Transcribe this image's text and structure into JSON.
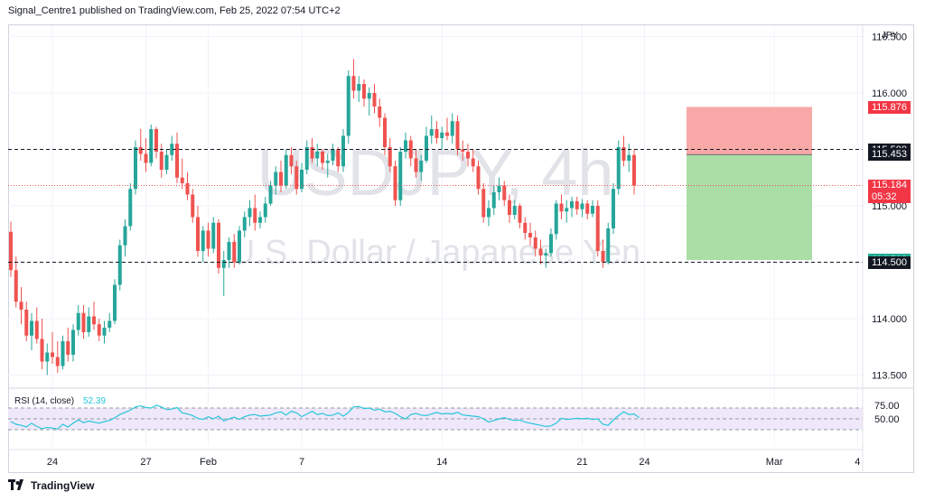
{
  "header": {
    "publisher_line": "Signal_Centre1 published on TradingView.com, Feb 25, 2022 07:54 UTC+2"
  },
  "footer": {
    "brand": "TradingView"
  },
  "colors": {
    "up": "#26a69a",
    "down": "#ef5350",
    "rsi_line": "#26c6da",
    "rsi_band": "#efe8fb",
    "risk_zone": "#f7a3a2",
    "reward_zone": "#a5dca1",
    "grid": "#f0f3fa",
    "dashed": "#131722"
  },
  "chart_data": {
    "type": "candlestick",
    "symbol_watermark": "USDJPY, 4h",
    "description_watermark": "U.S. Dollar / Japanese Yen",
    "currency": "JPY",
    "y_ticks": [
      "116.500",
      "116.000",
      "115.500",
      "115.000",
      "114.500",
      "114.000",
      "113.500"
    ],
    "ylim": [
      113.4,
      116.6
    ],
    "x_tick_labels": [
      "24",
      "27",
      "Feb",
      "7",
      "14",
      "21",
      "24",
      "Mar",
      "4"
    ],
    "candles": [
      [
        114.77,
        114.86,
        114.37,
        114.43
      ],
      [
        114.43,
        114.55,
        114.1,
        114.15
      ],
      [
        114.15,
        114.28,
        113.95,
        114.08
      ],
      [
        114.08,
        114.15,
        113.8,
        113.85
      ],
      [
        113.85,
        114.05,
        113.72,
        113.98
      ],
      [
        113.98,
        114.1,
        113.78,
        113.82
      ],
      [
        113.82,
        114.0,
        113.55,
        113.62
      ],
      [
        113.62,
        113.78,
        113.5,
        113.7
      ],
      [
        113.7,
        113.88,
        113.6,
        113.66
      ],
      [
        113.66,
        113.8,
        113.52,
        113.58
      ],
      [
        113.58,
        113.85,
        113.55,
        113.8
      ],
      [
        113.8,
        113.92,
        113.62,
        113.68
      ],
      [
        113.68,
        113.95,
        113.62,
        113.9
      ],
      [
        113.9,
        114.12,
        113.85,
        114.05
      ],
      [
        114.05,
        114.12,
        113.82,
        113.88
      ],
      [
        113.88,
        114.1,
        113.84,
        114.02
      ],
      [
        114.02,
        114.15,
        113.9,
        113.95
      ],
      [
        113.95,
        114.0,
        113.8,
        113.85
      ],
      [
        113.85,
        113.98,
        113.78,
        113.92
      ],
      [
        113.92,
        114.05,
        113.88,
        113.98
      ],
      [
        113.98,
        114.35,
        113.95,
        114.3
      ],
      [
        114.3,
        114.7,
        114.25,
        114.65
      ],
      [
        114.65,
        114.88,
        114.55,
        114.82
      ],
      [
        114.82,
        115.2,
        114.78,
        115.15
      ],
      [
        115.15,
        115.58,
        115.1,
        115.52
      ],
      [
        115.52,
        115.68,
        115.4,
        115.46
      ],
      [
        115.46,
        115.6,
        115.3,
        115.38
      ],
      [
        115.38,
        115.72,
        115.35,
        115.68
      ],
      [
        115.68,
        115.7,
        115.42,
        115.48
      ],
      [
        115.48,
        115.55,
        115.25,
        115.32
      ],
      [
        115.32,
        115.5,
        115.28,
        115.45
      ],
      [
        115.45,
        115.62,
        115.4,
        115.55
      ],
      [
        115.55,
        115.65,
        115.2,
        115.25
      ],
      [
        115.25,
        115.42,
        115.15,
        115.2
      ],
      [
        115.2,
        115.3,
        115.05,
        115.1
      ],
      [
        115.1,
        115.15,
        114.85,
        114.9
      ],
      [
        114.9,
        115.0,
        114.55,
        114.6
      ],
      [
        114.6,
        114.82,
        114.5,
        114.78
      ],
      [
        114.78,
        114.85,
        114.55,
        114.62
      ],
      [
        114.62,
        114.9,
        114.58,
        114.85
      ],
      [
        114.85,
        114.88,
        114.4,
        114.45
      ],
      [
        114.45,
        114.6,
        114.2,
        114.52
      ],
      [
        114.52,
        114.72,
        114.45,
        114.68
      ],
      [
        114.68,
        114.75,
        114.45,
        114.5
      ],
      [
        114.5,
        114.82,
        114.48,
        114.78
      ],
      [
        114.78,
        114.95,
        114.72,
        114.9
      ],
      [
        114.9,
        115.05,
        114.82,
        114.98
      ],
      [
        114.98,
        115.1,
        114.78,
        114.85
      ],
      [
        114.85,
        114.95,
        114.8,
        114.9
      ],
      [
        114.9,
        115.08,
        114.85,
        115.02
      ],
      [
        115.02,
        115.22,
        115.0,
        115.18
      ],
      [
        115.18,
        115.35,
        115.1,
        115.3
      ],
      [
        115.3,
        115.4,
        115.12,
        115.18
      ],
      [
        115.18,
        115.5,
        115.15,
        115.45
      ],
      [
        115.45,
        115.52,
        115.28,
        115.35
      ],
      [
        115.35,
        115.4,
        115.1,
        115.15
      ],
      [
        115.15,
        115.38,
        115.12,
        115.32
      ],
      [
        115.32,
        115.58,
        115.28,
        115.52
      ],
      [
        115.52,
        115.6,
        115.38,
        115.42
      ],
      [
        115.42,
        115.55,
        115.35,
        115.48
      ],
      [
        115.48,
        115.5,
        115.32,
        115.38
      ],
      [
        115.38,
        115.46,
        115.25,
        115.4
      ],
      [
        115.4,
        115.55,
        115.36,
        115.5
      ],
      [
        115.5,
        115.52,
        115.3,
        115.35
      ],
      [
        115.35,
        115.68,
        115.3,
        115.62
      ],
      [
        115.62,
        116.2,
        115.55,
        116.15
      ],
      [
        116.15,
        116.3,
        115.95,
        116.02
      ],
      [
        116.02,
        116.15,
        115.92,
        116.08
      ],
      [
        116.08,
        116.12,
        115.88,
        115.95
      ],
      [
        115.95,
        116.05,
        115.8,
        116.0
      ],
      [
        116.0,
        116.08,
        115.82,
        115.88
      ],
      [
        115.88,
        115.95,
        115.7,
        115.78
      ],
      [
        115.78,
        115.82,
        115.45,
        115.52
      ],
      [
        115.52,
        115.6,
        115.3,
        115.35
      ],
      [
        115.35,
        115.4,
        115.0,
        115.05
      ],
      [
        115.05,
        115.52,
        115.0,
        115.48
      ],
      [
        115.48,
        115.65,
        115.42,
        115.58
      ],
      [
        115.58,
        115.62,
        115.35,
        115.42
      ],
      [
        115.42,
        115.5,
        115.25,
        115.3
      ],
      [
        115.3,
        115.45,
        115.22,
        115.4
      ],
      [
        115.4,
        115.7,
        115.38,
        115.62
      ],
      [
        115.62,
        115.8,
        115.55,
        115.68
      ],
      [
        115.68,
        115.75,
        115.55,
        115.6
      ],
      [
        115.6,
        115.7,
        115.5,
        115.65
      ],
      [
        115.65,
        115.78,
        115.58,
        115.62
      ],
      [
        115.62,
        115.82,
        115.55,
        115.75
      ],
      [
        115.75,
        115.8,
        115.45,
        115.5
      ],
      [
        115.5,
        115.58,
        115.4,
        115.48
      ],
      [
        115.48,
        115.55,
        115.35,
        115.42
      ],
      [
        115.42,
        115.5,
        115.3,
        115.35
      ],
      [
        115.35,
        115.4,
        115.1,
        115.15
      ],
      [
        115.15,
        115.2,
        114.85,
        114.9
      ],
      [
        114.9,
        115.05,
        114.82,
        114.98
      ],
      [
        114.98,
        115.18,
        114.92,
        115.12
      ],
      [
        115.12,
        115.25,
        115.05,
        115.18
      ],
      [
        115.18,
        115.22,
        115.0,
        115.05
      ],
      [
        115.05,
        115.1,
        114.85,
        114.92
      ],
      [
        114.92,
        115.05,
        114.88,
        115.0
      ],
      [
        115.0,
        115.02,
        114.8,
        114.85
      ],
      [
        114.85,
        114.9,
        114.7,
        114.76
      ],
      [
        114.76,
        114.85,
        114.65,
        114.72
      ],
      [
        114.72,
        114.78,
        114.55,
        114.62
      ],
      [
        114.62,
        114.7,
        114.48,
        114.56
      ],
      [
        114.56,
        114.62,
        114.45,
        114.58
      ],
      [
        114.58,
        114.8,
        114.55,
        114.75
      ],
      [
        114.75,
        115.05,
        114.7,
        115.02
      ],
      [
        115.02,
        115.1,
        114.88,
        114.95
      ],
      [
        114.95,
        115.05,
        114.85,
        114.98
      ],
      [
        114.98,
        115.08,
        114.9,
        115.04
      ],
      [
        115.04,
        115.08,
        114.92,
        114.97
      ],
      [
        114.97,
        115.06,
        114.9,
        115.02
      ],
      [
        115.02,
        115.05,
        114.88,
        114.93
      ],
      [
        114.93,
        115.05,
        114.9,
        115.0
      ],
      [
        115.0,
        115.05,
        114.55,
        114.6
      ],
      [
        114.6,
        114.7,
        114.45,
        114.5
      ],
      [
        114.5,
        114.85,
        114.48,
        114.8
      ],
      [
        114.8,
        115.2,
        114.75,
        115.15
      ],
      [
        115.15,
        115.58,
        115.1,
        115.52
      ],
      [
        115.52,
        115.62,
        115.35,
        115.4
      ],
      [
        115.4,
        115.55,
        115.3,
        115.45
      ],
      [
        115.45,
        115.5,
        115.1,
        115.18
      ]
    ],
    "rsi": {
      "label": "RSI (14, close)",
      "value_label": "52.39",
      "y_ticks": [
        "75.00",
        "50.00"
      ],
      "levels": [
        70,
        50,
        30
      ],
      "values": [
        45,
        40,
        38,
        35,
        42,
        36,
        32,
        34,
        33,
        31,
        40,
        35,
        42,
        48,
        43,
        46,
        44,
        42,
        45,
        47,
        52,
        58,
        62,
        66,
        72,
        74,
        71,
        70,
        75,
        72,
        67,
        68,
        71,
        61,
        59,
        56,
        51,
        49,
        54,
        50,
        55,
        46,
        50,
        53,
        49,
        54,
        57,
        58,
        55,
        56,
        57,
        61,
        63,
        57,
        64,
        61,
        54,
        59,
        64,
        58,
        60,
        56,
        57,
        61,
        55,
        62,
        72,
        73,
        69,
        70,
        66,
        68,
        63,
        64,
        60,
        54,
        50,
        58,
        60,
        57,
        56,
        59,
        62,
        59,
        60,
        59,
        62,
        57,
        56,
        55,
        54,
        50,
        44,
        47,
        50,
        52,
        49,
        47,
        48,
        44,
        42,
        40,
        38,
        36,
        37,
        42,
        51,
        49,
        50,
        51,
        50,
        51,
        49,
        50,
        40,
        38,
        48,
        56,
        63,
        58,
        59,
        52
      ]
    },
    "position": {
      "entry": 115.453,
      "stop": 115.876,
      "target": 114.519
    },
    "levels_dashed": [
      115.5,
      114.5
    ],
    "price_labels": {
      "stop": "115.876",
      "level_high": "115.500",
      "entry": "115.453",
      "last": "115.184",
      "countdown": "05:32",
      "target": "114.519",
      "level_low": "114.500"
    }
  }
}
